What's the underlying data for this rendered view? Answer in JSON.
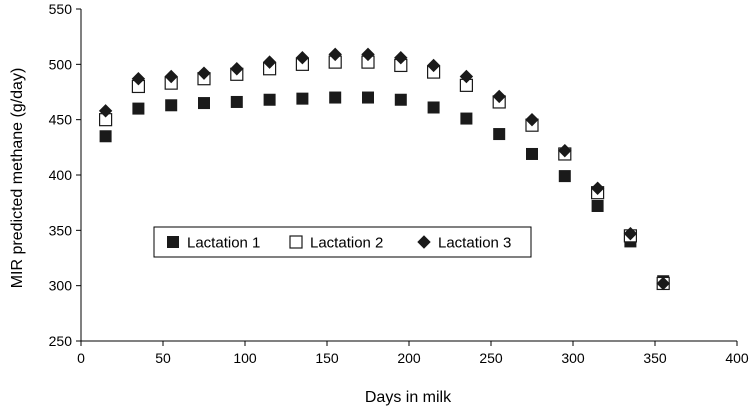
{
  "chart_data": {
    "type": "scatter",
    "title": "",
    "xlabel": "Days in milk",
    "ylabel": "MIR predicted methane (g/day)",
    "xlim": [
      0,
      400
    ],
    "ylim": [
      250,
      550
    ],
    "xticks": [
      0,
      50,
      100,
      150,
      200,
      250,
      300,
      350,
      400
    ],
    "yticks": [
      250,
      300,
      350,
      400,
      450,
      500,
      550
    ],
    "grid": false,
    "legend_position": "center-left",
    "series": [
      {
        "name": "Lactation 1",
        "marker": "filled-square",
        "color": "#1a1a1a",
        "x": [
          15,
          35,
          55,
          75,
          95,
          115,
          135,
          155,
          175,
          195,
          215,
          235,
          255,
          275,
          295,
          315,
          335,
          355
        ],
        "y": [
          435,
          460,
          463,
          465,
          466,
          468,
          469,
          470,
          470,
          468,
          461,
          451,
          437,
          419,
          399,
          372,
          340,
          304
        ]
      },
      {
        "name": "Lactation 2",
        "marker": "open-square",
        "color": "#1a1a1a",
        "x": [
          15,
          35,
          55,
          75,
          95,
          115,
          135,
          155,
          175,
          195,
          215,
          235,
          255,
          275,
          295,
          315,
          335,
          355
        ],
        "y": [
          450,
          480,
          483,
          487,
          491,
          496,
          500,
          502,
          502,
          499,
          493,
          481,
          466,
          445,
          419,
          384,
          345,
          302
        ]
      },
      {
        "name": "Lactation 3",
        "marker": "filled-diamond",
        "color": "#1a1a1a",
        "x": [
          15,
          35,
          55,
          75,
          95,
          115,
          135,
          155,
          175,
          195,
          215,
          235,
          255,
          275,
          295,
          315,
          335,
          355
        ],
        "y": [
          458,
          487,
          489,
          492,
          496,
          502,
          506,
          509,
          509,
          506,
          499,
          489,
          471,
          450,
          422,
          388,
          347,
          302
        ]
      }
    ]
  }
}
